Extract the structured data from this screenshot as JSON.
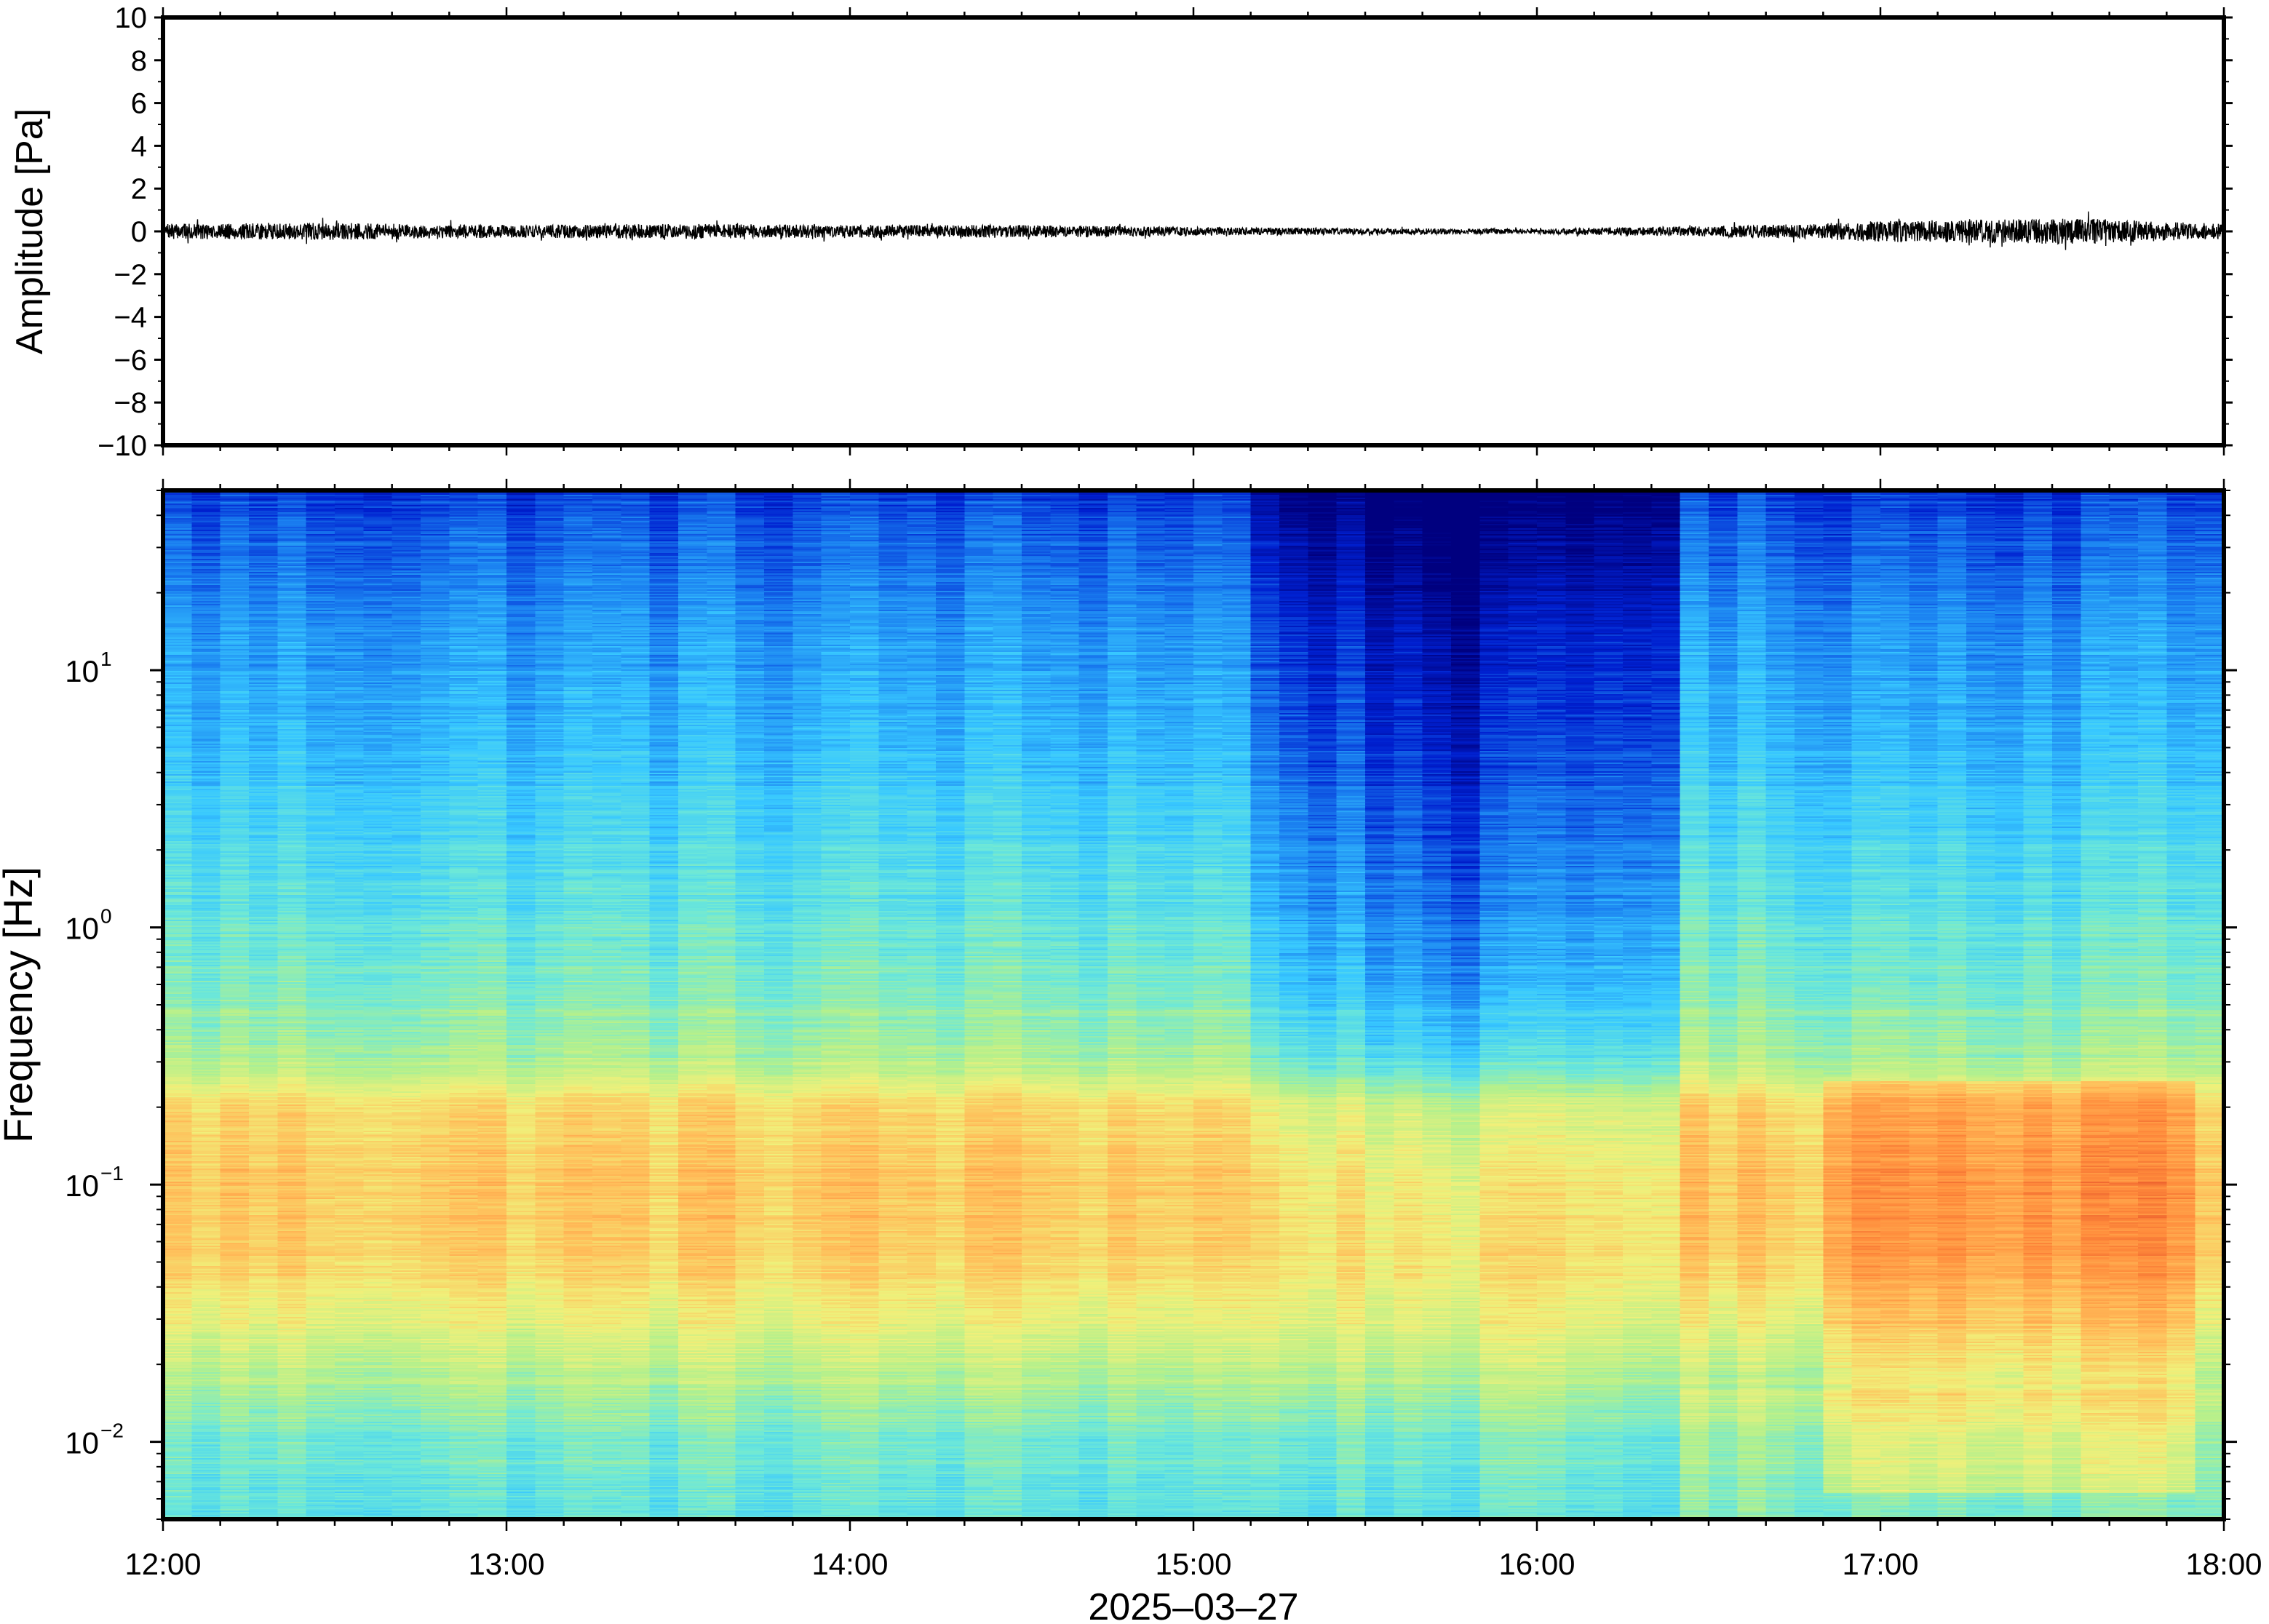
{
  "chart_data": [
    {
      "type": "line",
      "ylabel": "Amplitude [Pa]",
      "ylim": [
        -10,
        10
      ],
      "yticks": [
        10,
        8,
        6,
        4,
        2,
        0,
        -2,
        -4,
        -6,
        -8,
        -10
      ],
      "ytick_labels": [
        "10",
        "8",
        "6",
        "4",
        "2",
        "0",
        "−2",
        "−4",
        "−6",
        "−8",
        "−10"
      ],
      "x_range_hours": [
        12,
        18
      ],
      "trace_envelope": {
        "x": [
          12.0,
          12.5,
          13.0,
          13.5,
          14.0,
          14.5,
          15.0,
          15.5,
          16.0,
          16.5,
          16.8,
          17.0,
          17.3,
          17.6,
          18.0
        ],
        "half_amplitude": [
          0.35,
          0.4,
          0.3,
          0.35,
          0.3,
          0.3,
          0.2,
          0.15,
          0.12,
          0.25,
          0.35,
          0.5,
          0.55,
          0.6,
          0.35
        ]
      },
      "color": "#000000"
    },
    {
      "type": "heatmap",
      "ylabel": "Frequency [Hz]",
      "yscale": "log",
      "ylim": [
        0.005,
        50
      ],
      "ytick_labels": [
        {
          "value": 10,
          "base": "10",
          "exp": "1"
        },
        {
          "value": 1,
          "base": "10",
          "exp": "0"
        },
        {
          "value": 0.1,
          "base": "10",
          "exp": "−1"
        },
        {
          "value": 0.01,
          "base": "10",
          "exp": "−2"
        }
      ],
      "xlim_hours": [
        12,
        18
      ],
      "xtick_labels": [
        "12:00",
        "13:00",
        "14:00",
        "15:00",
        "16:00",
        "17:00",
        "18:00"
      ],
      "xlabel": "2025–03–27",
      "colormap": [
        "#00007f",
        "#0020d0",
        "#1a7ff0",
        "#38c8ff",
        "#6de8d8",
        "#b4f08c",
        "#f0f07a",
        "#ffbe5a",
        "#ff8c3c",
        "#e65028"
      ],
      "intensity_profile": {
        "log10_freq_nodes": [
          1.7,
          1.3,
          1.0,
          0.5,
          0.0,
          -0.5,
          -0.7,
          -1.0,
          -1.3,
          -1.6,
          -2.0,
          -2.3
        ],
        "intensity_nodes": [
          0.14,
          0.24,
          0.28,
          0.35,
          0.43,
          0.54,
          0.72,
          0.76,
          0.74,
          0.62,
          0.46,
          0.42
        ]
      },
      "quiet_period_hours": [
        15.2,
        16.45
      ],
      "quiet_period_strength": 0.22,
      "loud_period_hours": [
        16.8,
        17.9
      ],
      "loud_period_strength": 0.12
    }
  ]
}
